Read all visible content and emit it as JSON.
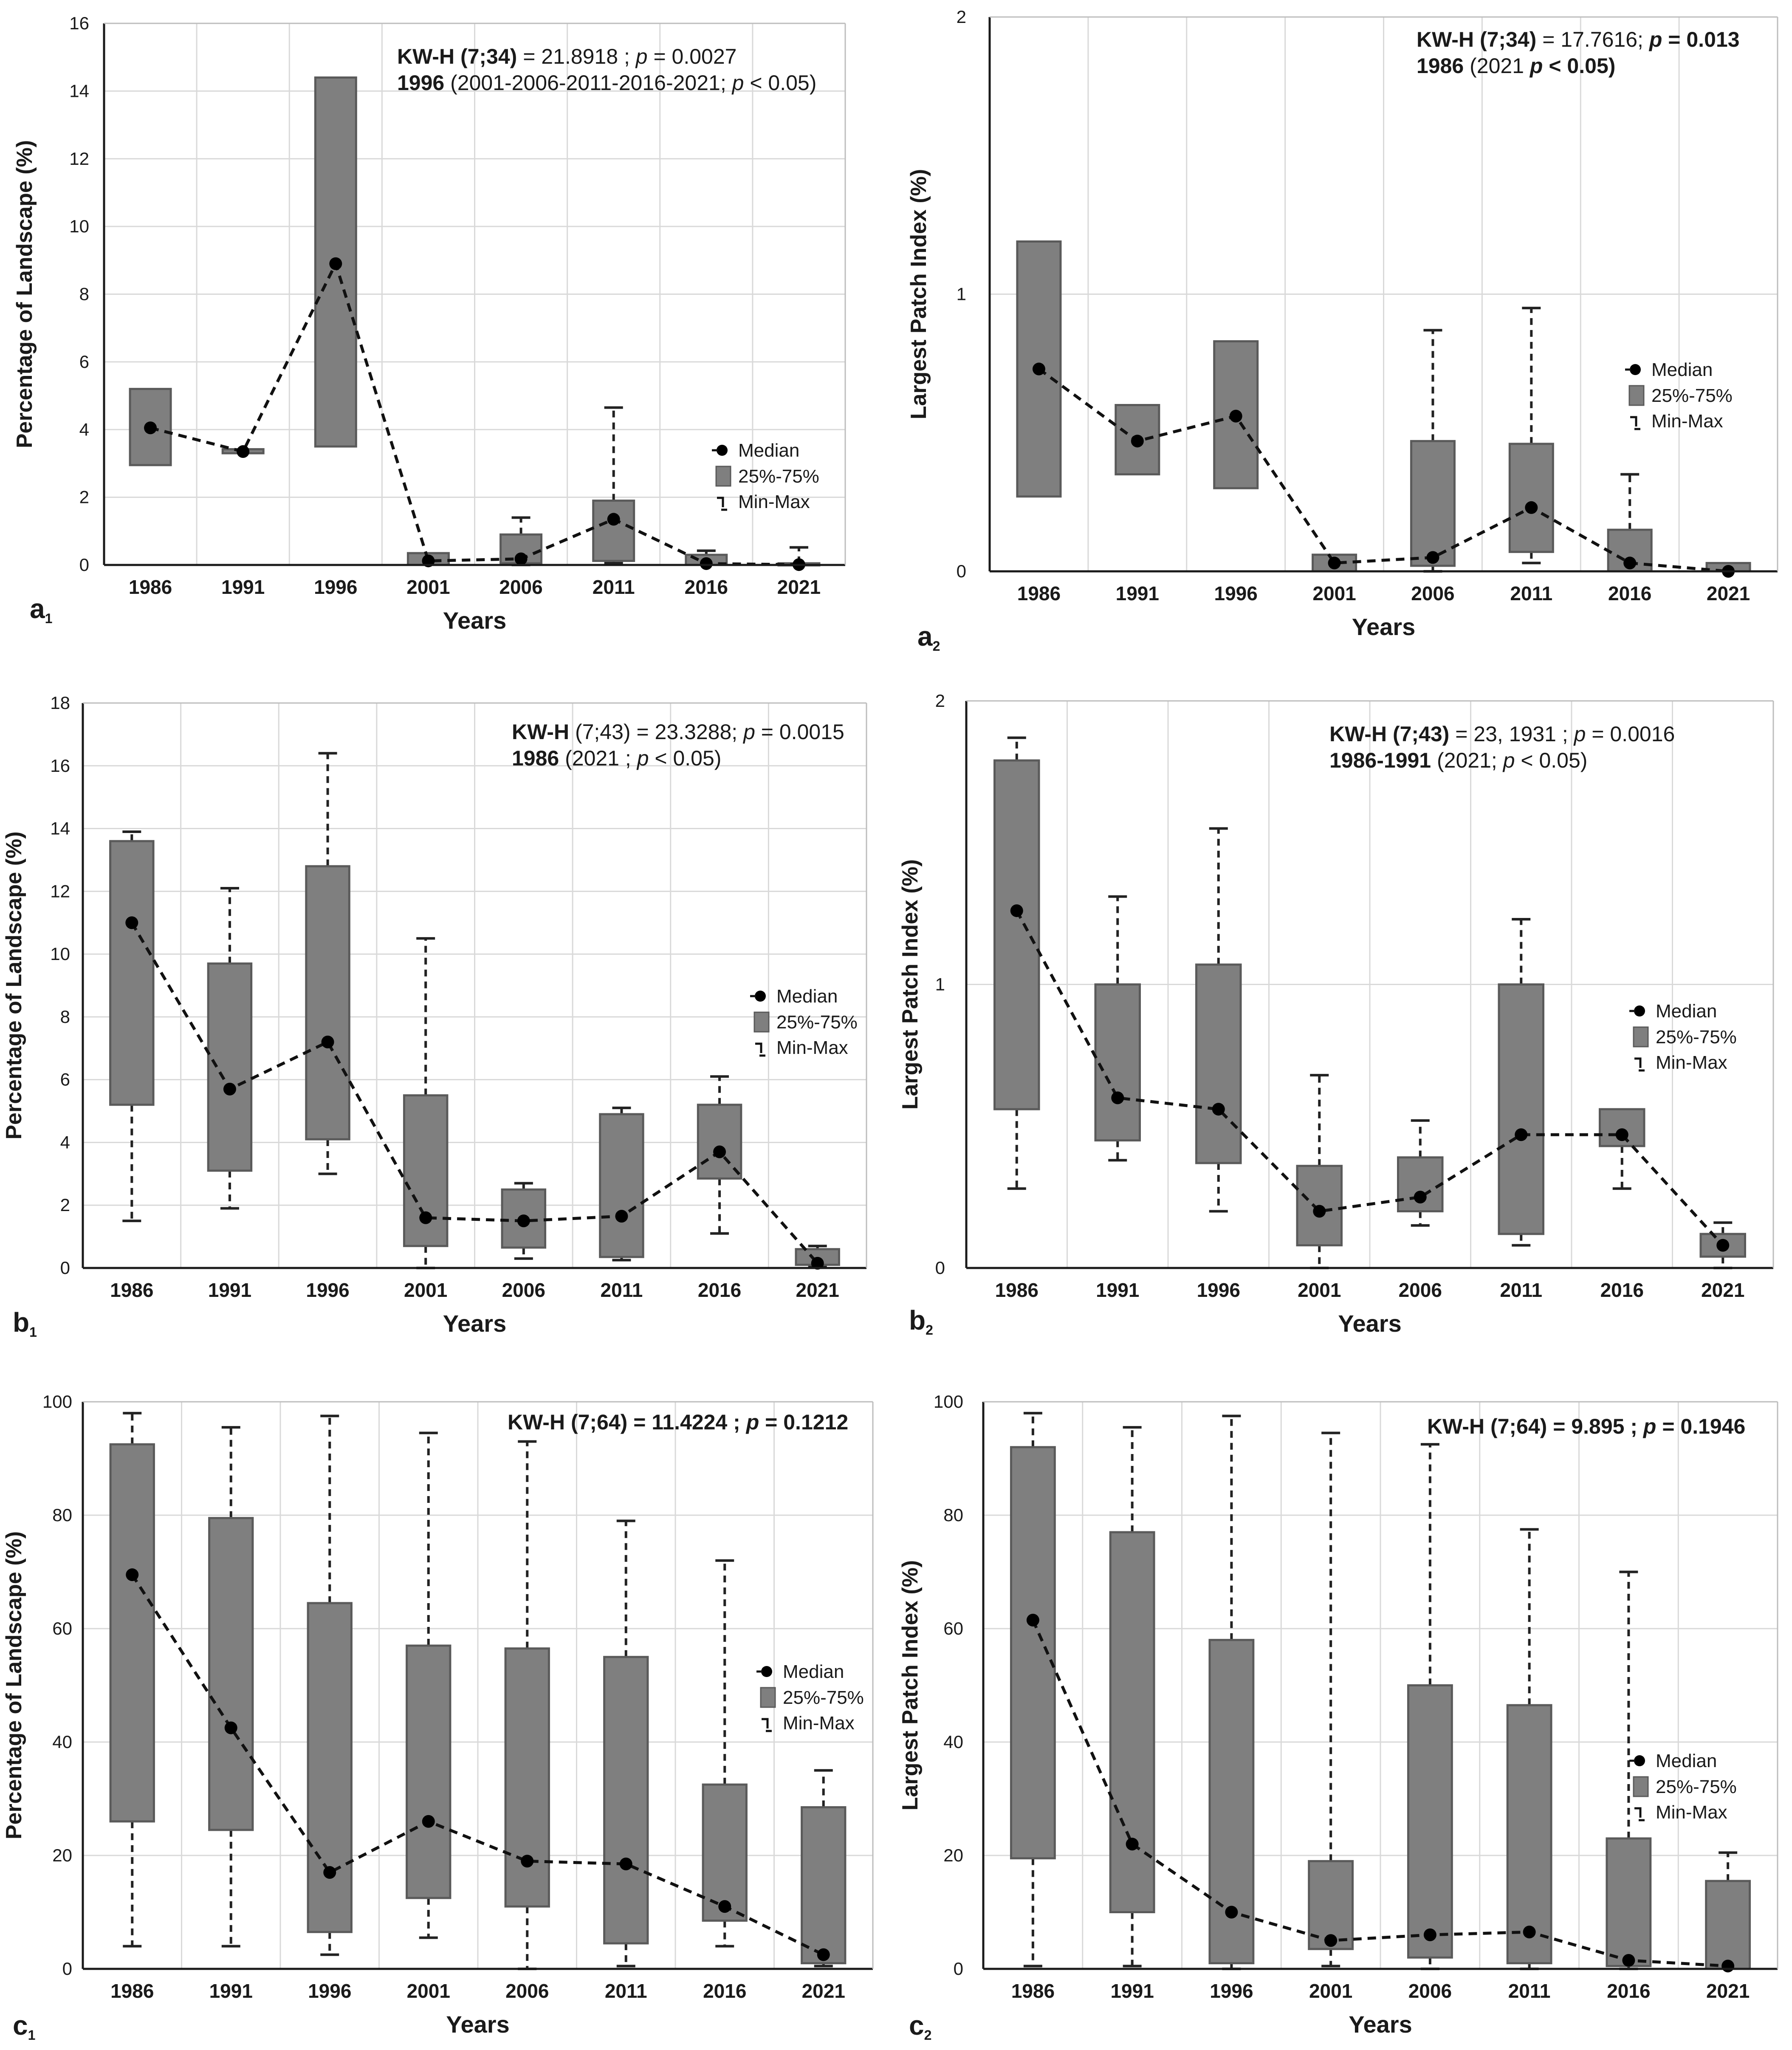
{
  "chart_data": [
    {
      "panel": "a1",
      "panel_letter": "a",
      "panel_sub": "1",
      "type": "box",
      "xlabel": "Years",
      "ylabel": "Percentage of Landscape (%)",
      "ylim": [
        0,
        16
      ],
      "yticks": [
        0,
        2,
        4,
        6,
        8,
        10,
        12,
        14,
        16
      ],
      "categories": [
        "1986",
        "1991",
        "1996",
        "2001",
        "2006",
        "2011",
        "2016",
        "2021"
      ],
      "median": [
        4.05,
        3.35,
        8.9,
        0.12,
        0.18,
        1.35,
        0.04,
        0.01
      ],
      "q1": [
        2.95,
        3.3,
        3.5,
        0.0,
        0.05,
        0.12,
        0.0,
        0.0
      ],
      "q3": [
        5.2,
        3.42,
        14.4,
        0.35,
        0.9,
        1.9,
        0.3,
        0.05
      ],
      "min": [
        2.95,
        3.3,
        3.5,
        0.0,
        0.0,
        0.05,
        0.0,
        0.0
      ],
      "max": [
        5.2,
        3.42,
        14.4,
        0.35,
        1.4,
        4.65,
        0.42,
        0.52
      ],
      "stats_lines": [
        [
          {
            "t": "KW-H (7;34)",
            "b": true
          },
          {
            "t": " = 21.8918 ; ",
            "b": false
          },
          {
            "t": "p",
            "b": false,
            "i": true
          },
          {
            "t": " = 0.0027",
            "b": false
          }
        ],
        [
          {
            "t": "1996",
            "b": true
          },
          {
            "t": " (2001-2006-2011-2016-2021; ",
            "b": false
          },
          {
            "t": "p",
            "b": false,
            "i": true
          },
          {
            "t": " < 0.05)",
            "b": false
          }
        ]
      ],
      "legend": {
        "median": "Median",
        "box": "25%-75%",
        "whisker": "Min-Max"
      }
    },
    {
      "panel": "a2",
      "panel_letter": "a",
      "panel_sub": "2",
      "type": "box",
      "xlabel": "Years",
      "ylabel": "Largest Patch Index (%)",
      "ylim": [
        0,
        2
      ],
      "yticks": [
        0,
        1,
        2
      ],
      "categories": [
        "1986",
        "1991",
        "1996",
        "2001",
        "2006",
        "2011",
        "2016",
        "2021"
      ],
      "median": [
        0.73,
        0.47,
        0.56,
        0.03,
        0.05,
        0.23,
        0.03,
        0.0
      ],
      "q1": [
        0.27,
        0.35,
        0.3,
        0.0,
        0.02,
        0.07,
        0.0,
        0.0
      ],
      "q3": [
        1.19,
        0.6,
        0.83,
        0.06,
        0.47,
        0.46,
        0.15,
        0.03
      ],
      "min": [
        0.27,
        0.35,
        0.3,
        0.0,
        0.0,
        0.03,
        0.0,
        0.0
      ],
      "max": [
        1.19,
        0.6,
        0.83,
        0.06,
        0.87,
        0.95,
        0.35,
        0.03
      ],
      "stats_lines": [
        [
          {
            "t": "KW-H (7;34)",
            "b": true
          },
          {
            "t": " = 17.7616; ",
            "b": false
          },
          {
            "t": "p",
            "b": true,
            "i": true
          },
          {
            "t": " = 0.013",
            "b": true
          }
        ],
        [
          {
            "t": "1986",
            "b": true
          },
          {
            "t": " (2021 ",
            "b": false
          },
          {
            "t": "p",
            "b": true,
            "i": true
          },
          {
            "t": " < 0.05)",
            "b": true
          }
        ]
      ],
      "legend": {
        "median": "Median",
        "box": "25%-75%",
        "whisker": "Min-Max"
      }
    },
    {
      "panel": "b1",
      "panel_letter": "b",
      "panel_sub": "1",
      "type": "box",
      "xlabel": "Years",
      "ylabel": "Percentage of Landscape (%)",
      "ylim": [
        0,
        18
      ],
      "yticks": [
        0,
        2,
        4,
        6,
        8,
        10,
        12,
        14,
        16,
        18
      ],
      "categories": [
        "1986",
        "1991",
        "1996",
        "2001",
        "2006",
        "2011",
        "2016",
        "2021"
      ],
      "median": [
        11.0,
        5.7,
        7.2,
        1.6,
        1.5,
        1.65,
        3.7,
        0.15
      ],
      "q1": [
        5.2,
        3.1,
        4.1,
        0.7,
        0.65,
        0.35,
        2.85,
        0.1
      ],
      "q3": [
        13.6,
        9.7,
        12.8,
        5.5,
        2.5,
        4.9,
        5.2,
        0.6
      ],
      "min": [
        1.5,
        1.9,
        3.0,
        0.0,
        0.3,
        0.25,
        1.1,
        0.05
      ],
      "max": [
        13.9,
        12.1,
        16.4,
        10.5,
        2.7,
        5.1,
        6.1,
        0.7
      ],
      "stats_lines": [
        [
          {
            "t": "KW-H",
            "b": true
          },
          {
            "t": " (7;43) = 23.3288; ",
            "b": false
          },
          {
            "t": "p",
            "b": false,
            "i": true
          },
          {
            "t": " = 0.0015",
            "b": false
          }
        ],
        [
          {
            "t": "1986",
            "b": true
          },
          {
            "t": " (2021 ; ",
            "b": false
          },
          {
            "t": "p",
            "b": false,
            "i": true
          },
          {
            "t": " < 0.05)",
            "b": false
          }
        ]
      ],
      "legend": {
        "median": "Median",
        "box": "25%-75%",
        "whisker": "Min-Max"
      }
    },
    {
      "panel": "b2",
      "panel_letter": "b",
      "panel_sub": "2",
      "type": "box",
      "xlabel": "Years",
      "ylabel": "Largest Patch Index (%)",
      "ylim": [
        0,
        2
      ],
      "yticks": [
        0,
        1,
        2
      ],
      "categories": [
        "1986",
        "1991",
        "1996",
        "2001",
        "2006",
        "2011",
        "2016",
        "2021"
      ],
      "median": [
        1.26,
        0.6,
        0.56,
        0.2,
        0.25,
        0.47,
        0.47,
        0.08
      ],
      "q1": [
        0.56,
        0.45,
        0.37,
        0.08,
        0.2,
        0.12,
        0.43,
        0.04
      ],
      "q3": [
        1.79,
        1.0,
        1.07,
        0.36,
        0.39,
        1.0,
        0.56,
        0.12
      ],
      "min": [
        0.28,
        0.38,
        0.2,
        0.0,
        0.15,
        0.08,
        0.28,
        0.0
      ],
      "max": [
        1.87,
        1.31,
        1.55,
        0.68,
        0.52,
        1.23,
        0.56,
        0.16
      ],
      "stats_lines": [
        [
          {
            "t": "KW-H (7;43)",
            "b": true
          },
          {
            "t": " = 23, 1931 ; ",
            "b": false
          },
          {
            "t": "p",
            "b": false,
            "i": true
          },
          {
            "t": " = 0.0016",
            "b": false
          }
        ],
        [
          {
            "t": "1986-1991",
            "b": true
          },
          {
            "t": " (2021; ",
            "b": false
          },
          {
            "t": "p",
            "b": false,
            "i": true
          },
          {
            "t": " < 0.05)",
            "b": false
          }
        ]
      ],
      "legend": {
        "median": "Median",
        "box": "25%-75%",
        "whisker": "Min-Max"
      }
    },
    {
      "panel": "c1",
      "panel_letter": "c",
      "panel_sub": "1",
      "type": "box",
      "xlabel": "Years",
      "ylabel": "Percentage of Landscape (%)",
      "ylim": [
        0,
        100
      ],
      "yticks": [
        0,
        20,
        40,
        60,
        80,
        100
      ],
      "categories": [
        "1986",
        "1991",
        "1996",
        "2001",
        "2006",
        "2011",
        "2016",
        "2021"
      ],
      "median": [
        69.5,
        42.5,
        17.0,
        26.0,
        19.0,
        18.5,
        11.0,
        2.5
      ],
      "q1": [
        26.0,
        24.5,
        6.5,
        12.5,
        11.0,
        4.5,
        8.5,
        1.0
      ],
      "q3": [
        92.5,
        79.5,
        64.5,
        57.0,
        56.5,
        55.0,
        32.5,
        28.5
      ],
      "min": [
        4.0,
        4.0,
        2.5,
        5.5,
        0.0,
        0.5,
        4.0,
        0.5
      ],
      "max": [
        98.0,
        95.5,
        97.5,
        94.5,
        93.0,
        79.0,
        72.0,
        35.0
      ],
      "stats_lines": [
        [
          {
            "t": "KW-H (7;64) = 11.4224 ; ",
            "b": true
          },
          {
            "t": "p",
            "b": true,
            "i": true
          },
          {
            "t": " = 0.1212",
            "b": true
          }
        ]
      ],
      "legend": {
        "median": "Median",
        "box": "25%-75%",
        "whisker": "Min-Max"
      }
    },
    {
      "panel": "c2",
      "panel_letter": "c",
      "panel_sub": "2",
      "type": "box",
      "xlabel": "Years",
      "ylabel": "Largest Patch Index (%)",
      "ylim": [
        0,
        100
      ],
      "yticks": [
        0,
        20,
        40,
        60,
        80,
        100
      ],
      "categories": [
        "1986",
        "1991",
        "1996",
        "2001",
        "2006",
        "2011",
        "2016",
        "2021"
      ],
      "median": [
        61.5,
        22.0,
        10.0,
        5.0,
        6.0,
        6.5,
        1.5,
        0.5
      ],
      "q1": [
        19.5,
        10.0,
        1.0,
        3.5,
        2.0,
        1.0,
        0.5,
        0.0
      ],
      "q3": [
        92.0,
        77.0,
        58.0,
        19.0,
        50.0,
        46.5,
        23.0,
        15.5
      ],
      "min": [
        0.5,
        0.5,
        0.0,
        0.5,
        0.0,
        0.0,
        0.0,
        0.0
      ],
      "max": [
        98.0,
        95.5,
        97.5,
        94.5,
        92.5,
        77.5,
        70.0,
        20.5
      ],
      "stats_lines": [
        [
          {
            "t": "KW-H (7;64) = 9.895 ; ",
            "b": true
          },
          {
            "t": "p",
            "b": true,
            "i": true
          },
          {
            "t": " = 0.1946",
            "b": true
          }
        ]
      ],
      "legend": {
        "median": "Median",
        "box": "25%-75%",
        "whisker": "Min-Max"
      }
    }
  ],
  "colors": {
    "box_fill": "#7f7f7f",
    "box_stroke": "#5a5a5a",
    "grid": "#d9d9d9",
    "axis": "#1a1a1a",
    "median_marker": "#000000",
    "text": "#1a1a1a"
  }
}
